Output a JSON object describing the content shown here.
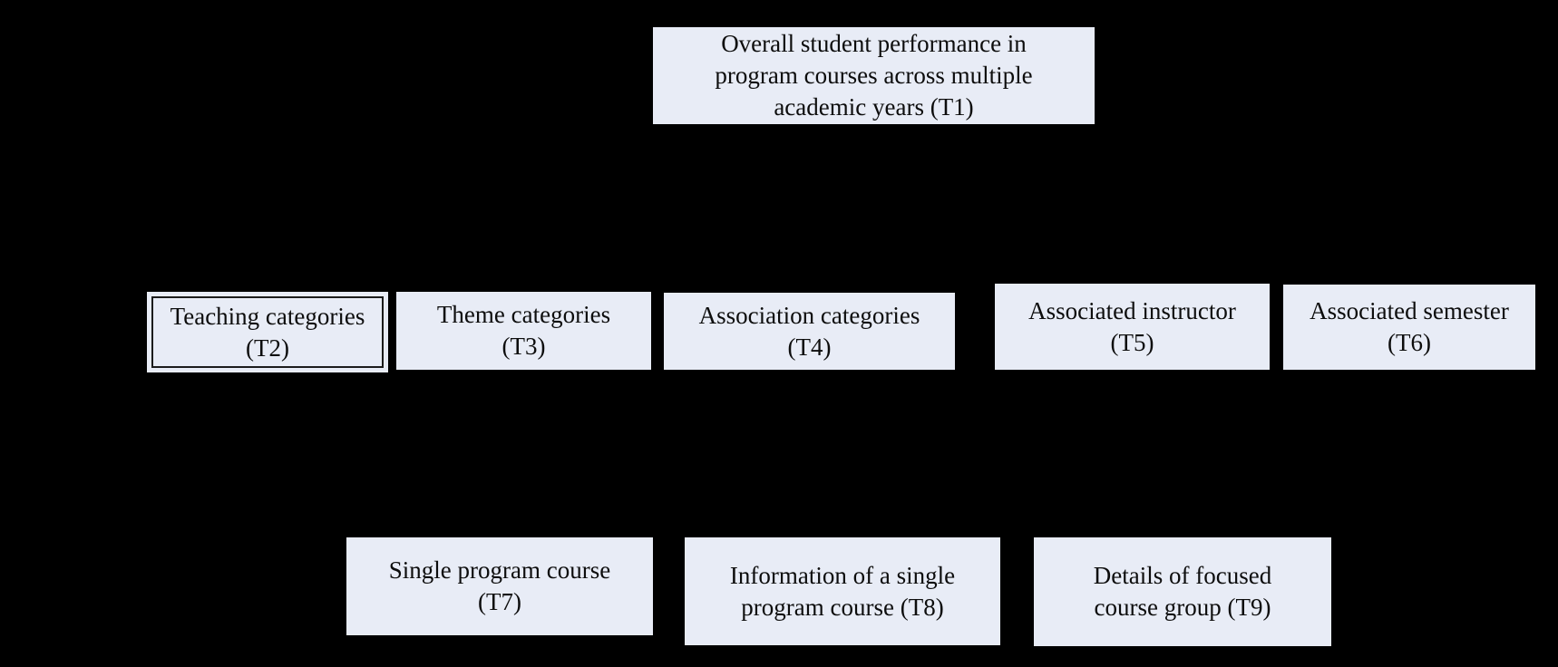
{
  "colors": {
    "background": "#000000",
    "node_fill": "#e8ecf6",
    "node_text": "#0d0d0d",
    "highlight_border": "#1c1c1c"
  },
  "diagram": {
    "nodes": {
      "t1": {
        "id": "T1",
        "lines": [
          "Overall student performance in",
          "program courses across multiple",
          "academic years (T1)"
        ]
      },
      "t2": {
        "id": "T2",
        "lines": [
          "Teaching categories",
          "(T2)"
        ]
      },
      "t3": {
        "id": "T3",
        "lines": [
          "Theme categories",
          "(T3)"
        ]
      },
      "t4": {
        "id": "T4",
        "lines": [
          "Association categories",
          "(T4)"
        ]
      },
      "t5": {
        "id": "T5",
        "lines": [
          "Associated instructor",
          "(T5)"
        ]
      },
      "t6": {
        "id": "T6",
        "lines": [
          "Associated semester",
          "(T6)"
        ]
      },
      "t7": {
        "id": "T7",
        "lines": [
          "Single program course",
          "(T7)"
        ]
      },
      "t8": {
        "id": "T8",
        "lines": [
          "Information of a single",
          "program course (T8)"
        ]
      },
      "t9": {
        "id": "T9",
        "lines": [
          "Details of focused",
          "course group (T9)"
        ]
      }
    }
  }
}
